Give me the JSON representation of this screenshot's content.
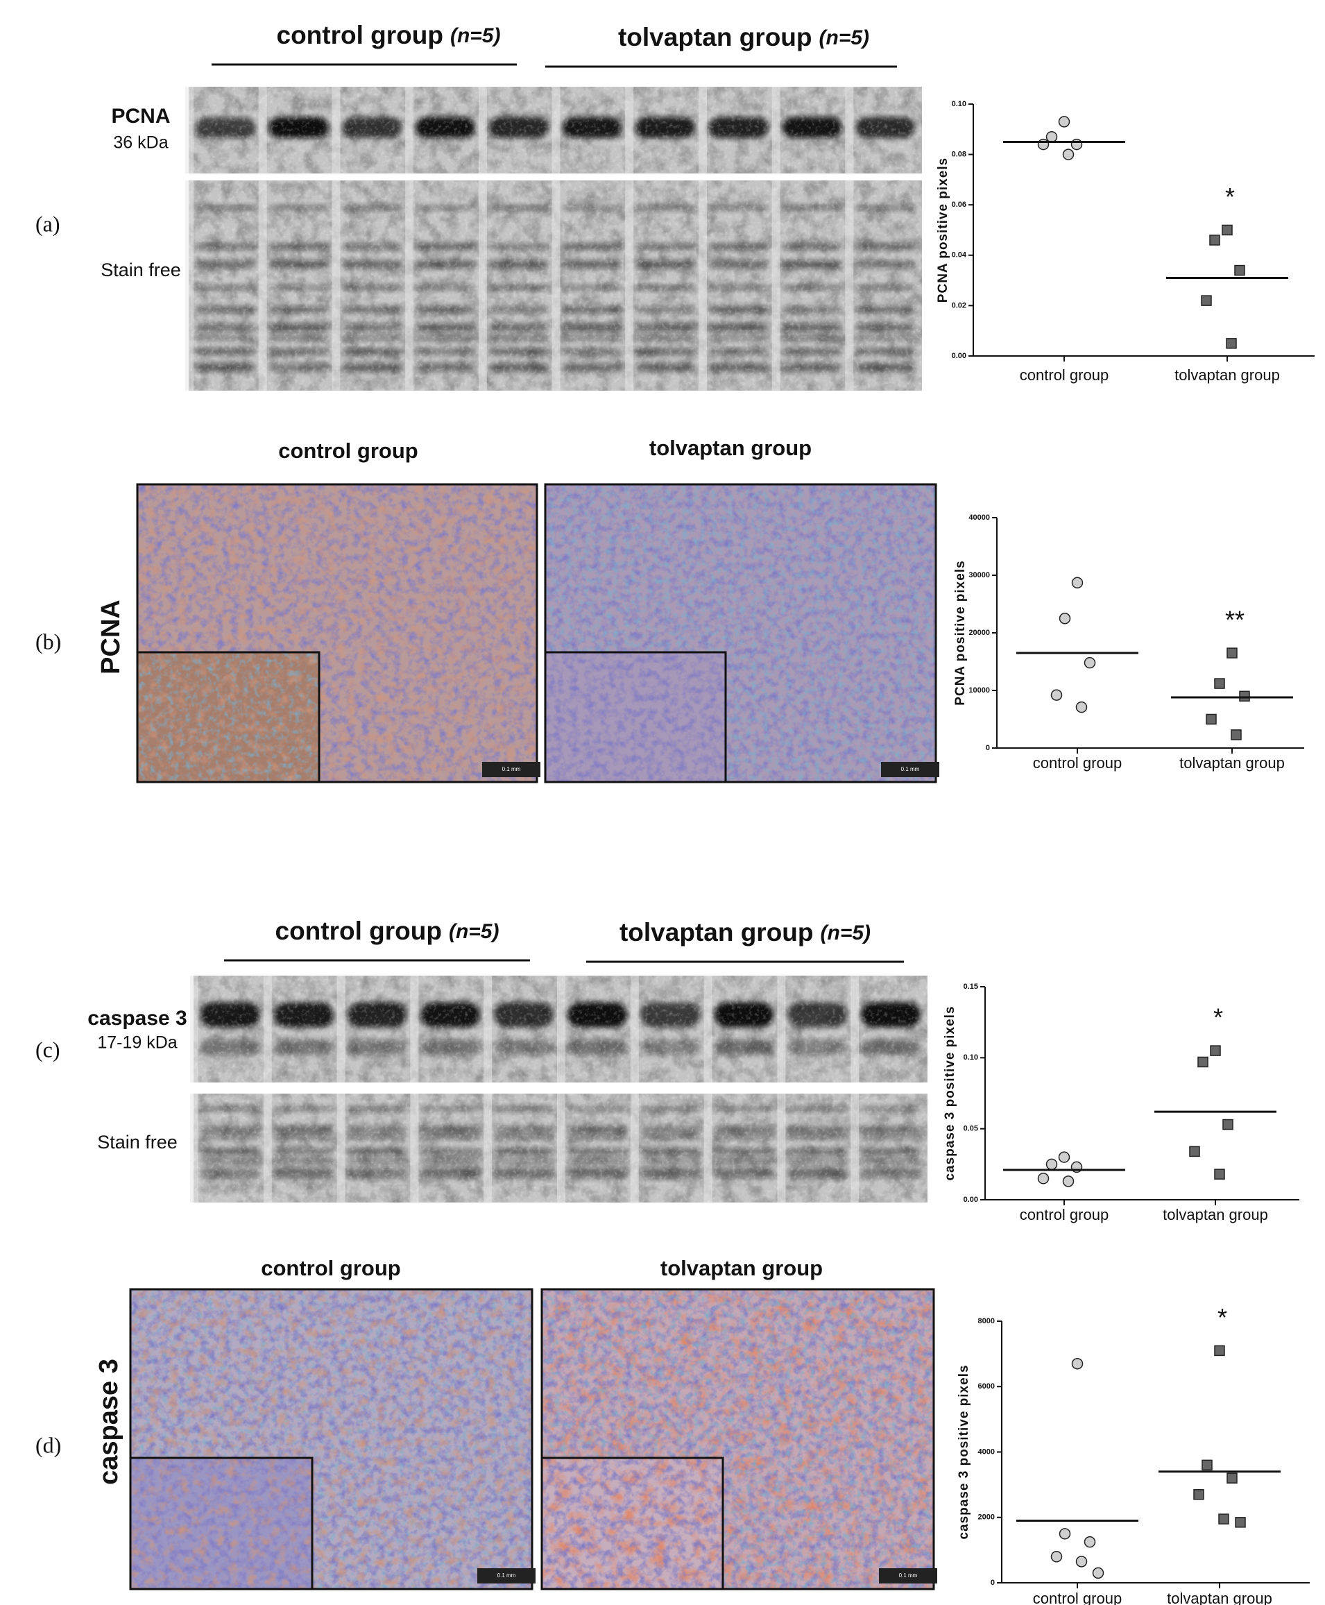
{
  "panels": [
    {
      "label": "(a)",
      "groups": [
        {
          "name": "control group",
          "n": "(n=5)"
        },
        {
          "name": "tolvaptan group",
          "n": "(n=5)"
        }
      ],
      "protein": "PCNA",
      "weight": "36 kDa",
      "loading": "Stain free"
    },
    {
      "label": "(b)",
      "groups": [
        "control group",
        "tolvaptan group"
      ],
      "stain": "PCNA",
      "scale_bar": "0.1 mm"
    },
    {
      "label": "(c)",
      "groups": [
        {
          "name": "control group",
          "n": "(n=5)"
        },
        {
          "name": "tolvaptan group",
          "n": "(n=5)"
        }
      ],
      "protein": "caspase 3",
      "weight": "17-19 kDa",
      "loading": "Stain free"
    },
    {
      "label": "(d)",
      "groups": [
        "control group",
        "tolvaptan group"
      ],
      "stain": "caspase 3",
      "scale_bar": "0.1 mm"
    }
  ],
  "chart_data": [
    {
      "type": "dot",
      "ylabel": "PCNA positive pixels",
      "series": [
        {
          "name": "control group",
          "marker": "circle",
          "color": "#cfcfcf",
          "values": [
            0.093,
            0.087,
            0.084,
            0.084,
            0.08
          ],
          "mean": 0.085
        },
        {
          "name": "tolvaptan group",
          "marker": "square",
          "color": "#666666",
          "values": [
            0.05,
            0.046,
            0.034,
            0.022,
            0.005
          ],
          "mean": 0.031,
          "annotation": "*"
        }
      ],
      "ylim": [
        0,
        0.1
      ],
      "yticks": [
        {
          "value": 0,
          "label": "0.00"
        },
        0.02,
        0.04,
        0.06,
        0.08,
        {
          "value": 0.1,
          "label": "0.10"
        }
      ]
    },
    {
      "type": "dot",
      "ylabel": "PCNA positive pixels",
      "series": [
        {
          "name": "control group",
          "marker": "circle",
          "color": "#cfcfcf",
          "values": [
            28700,
            22500,
            14800,
            9200,
            7100
          ],
          "mean": 16500
        },
        {
          "name": "tolvaptan group",
          "marker": "square",
          "color": "#666666",
          "values": [
            16500,
            11200,
            9000,
            5000,
            2300
          ],
          "mean": 8800,
          "annotation": "**"
        }
      ],
      "ylim": [
        0,
        40000
      ],
      "yticks": [
        0,
        10000,
        20000,
        30000,
        40000
      ]
    },
    {
      "type": "dot",
      "ylabel": "caspase 3 positive pixels",
      "series": [
        {
          "name": "control group",
          "marker": "circle",
          "color": "#cfcfcf",
          "values": [
            0.03,
            0.025,
            0.023,
            0.015,
            0.013
          ],
          "mean": 0.021
        },
        {
          "name": "tolvaptan group",
          "marker": "square",
          "color": "#666666",
          "values": [
            0.105,
            0.097,
            0.053,
            0.034,
            0.018
          ],
          "mean": 0.062,
          "annotation": "*"
        }
      ],
      "ylim": [
        0,
        0.15
      ],
      "yticks": [
        {
          "value": 0,
          "label": "0.00"
        },
        0.05,
        {
          "value": 0.1,
          "label": "0.10"
        },
        {
          "value": 0.15,
          "label": "0.15"
        }
      ]
    },
    {
      "type": "dot",
      "ylabel": "caspase 3 positive pixels",
      "series": [
        {
          "name": "control group",
          "marker": "circle",
          "color": "#cfcfcf",
          "values": [
            6700,
            1500,
            1250,
            800,
            650,
            300
          ],
          "mean": 1900
        },
        {
          "name": "tolvaptan group",
          "marker": "square",
          "color": "#666666",
          "values": [
            7100,
            3600,
            3200,
            2700,
            1950,
            1850
          ],
          "mean": 3400,
          "annotation": "*"
        }
      ],
      "ylim": [
        0,
        8000
      ],
      "yticks": [
        0,
        2000,
        4000,
        6000,
        8000
      ]
    }
  ]
}
